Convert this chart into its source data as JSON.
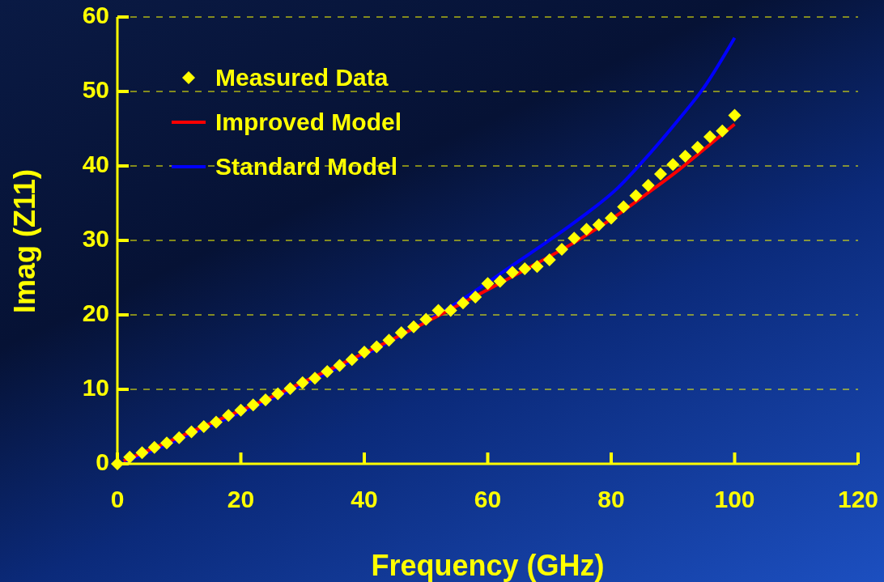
{
  "chart_data": {
    "type": "line",
    "xlabel": "Frequency (GHz)",
    "ylabel": "Imag (Z11)",
    "xlim": [
      0,
      120
    ],
    "xticks": [
      0,
      20,
      40,
      60,
      80,
      100,
      120
    ],
    "ylim": [
      0,
      60
    ],
    "yticks": [
      0,
      10,
      20,
      30,
      40,
      50,
      60
    ],
    "grid": "y",
    "legend": "top left",
    "series": [
      {
        "name": "Measured Data",
        "type": "scatter",
        "marker": "diamond",
        "color": "#ffff00",
        "x": [
          0,
          2,
          4,
          6,
          8,
          10,
          12,
          14,
          16,
          18,
          20,
          22,
          24,
          26,
          28,
          30,
          32,
          34,
          36,
          38,
          40,
          42,
          44,
          46,
          48,
          50,
          52,
          54,
          56,
          58,
          60,
          62,
          64,
          66,
          68,
          70,
          72,
          74,
          76,
          78,
          80,
          82,
          84,
          86,
          88,
          90,
          92,
          94,
          96,
          98,
          100
        ],
        "values": [
          0,
          0.9,
          1.5,
          2.2,
          2.8,
          3.5,
          4.3,
          5.0,
          5.6,
          6.5,
          7.2,
          7.9,
          8.6,
          9.4,
          10.1,
          10.9,
          11.5,
          12.4,
          13.2,
          14.0,
          15.0,
          15.7,
          16.6,
          17.6,
          18.4,
          19.4,
          20.6,
          20.6,
          21.6,
          22.4,
          24.2,
          24.5,
          25.7,
          26.2,
          26.5,
          27.4,
          28.8,
          30.3,
          31.5,
          32.1,
          33.0,
          34.5,
          36.0,
          37.4,
          38.9,
          40.2,
          41.3,
          42.5,
          43.9,
          44.7,
          46.8
        ]
      },
      {
        "name": "Improved Model",
        "marker": "none",
        "color": "#ff0000",
        "x": [
          1,
          5,
          15,
          25,
          35,
          45,
          55,
          65,
          75,
          81,
          85,
          91,
          95,
          100
        ],
        "values": [
          0.4,
          1.8,
          5.4,
          9.0,
          12.9,
          16.9,
          21.2,
          25.6,
          30.2,
          33.4,
          35.8,
          39.5,
          42.2,
          45.6
        ]
      },
      {
        "name": "Standard Model",
        "marker": "none",
        "color": "#0000ff",
        "x": [
          1,
          5,
          15,
          25,
          35,
          45,
          55,
          65,
          71,
          75,
          81,
          85,
          91,
          95,
          100
        ],
        "values": [
          0.2,
          1.5,
          5.1,
          8.7,
          12.6,
          16.8,
          21.6,
          27.2,
          30.6,
          33.0,
          37.0,
          40.5,
          46.3,
          50.5,
          57.2
        ]
      }
    ]
  }
}
